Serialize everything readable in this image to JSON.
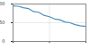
{
  "chart_data": {
    "type": "line",
    "x": [
      0,
      7,
      14,
      21,
      28,
      35,
      42,
      50,
      57,
      64,
      71,
      78,
      85,
      92,
      100
    ],
    "values": [
      95,
      94,
      90,
      88,
      80,
      78,
      70,
      66,
      60,
      58,
      52,
      50,
      45,
      42,
      40
    ],
    "color": "#4a90c0",
    "xlim": [
      0,
      100
    ],
    "xticks": [
      0,
      50,
      100
    ],
    "ylim": [
      0,
      100
    ],
    "yticks": [
      0,
      50,
      100
    ],
    "grid": true
  }
}
